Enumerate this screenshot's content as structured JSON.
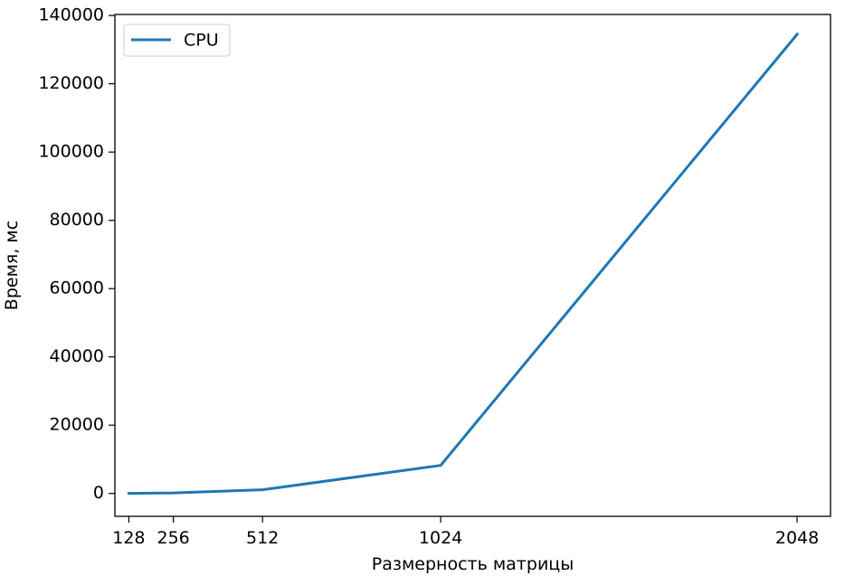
{
  "chart_data": {
    "type": "line",
    "title": "",
    "xlabel": "Размерность матрицы",
    "ylabel": "Время, мс",
    "x": [
      128,
      256,
      512,
      1024,
      2048
    ],
    "xticks": [
      "128",
      "256",
      "512",
      "1024",
      "2048"
    ],
    "xlim": [
      88,
      2144
    ],
    "ylim": [
      -6700,
      140300
    ],
    "yticks": [
      0,
      20000,
      40000,
      60000,
      80000,
      100000,
      120000,
      140000
    ],
    "ytick_labels": [
      "0",
      "20000",
      "40000",
      "60000",
      "80000",
      "100000",
      "120000",
      "140000"
    ],
    "series": [
      {
        "name": "CPU",
        "color": "#1f77b4",
        "values": [
          20,
          150,
          1100,
          8200,
          134500
        ]
      }
    ],
    "legend": {
      "placement": "top-left",
      "entries": [
        "CPU"
      ]
    },
    "grid": false
  }
}
